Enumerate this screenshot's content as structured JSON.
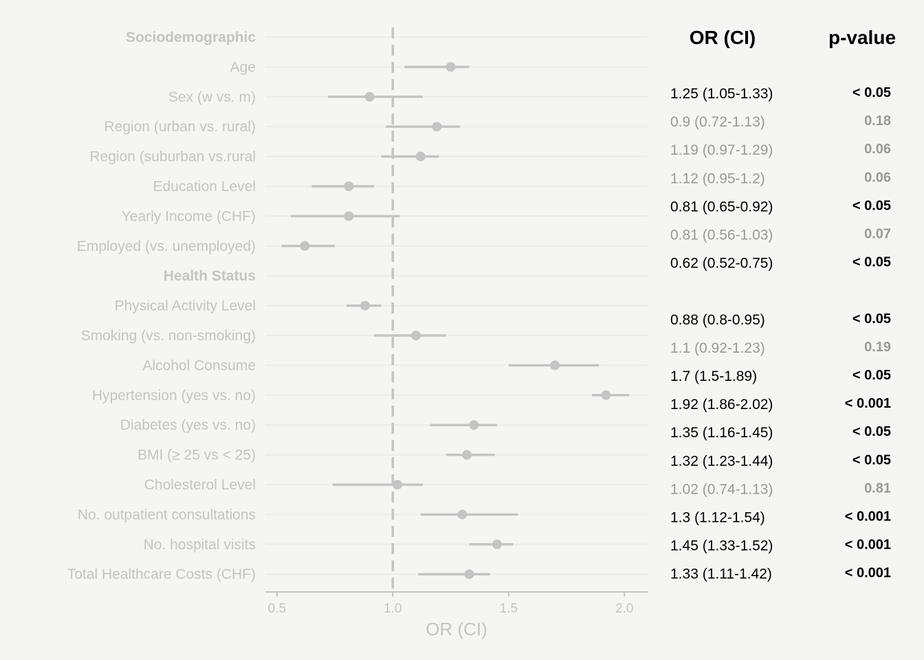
{
  "chart_data": {
    "type": "forest",
    "xlabel": "OR (CI)",
    "xlim": [
      0.45,
      2.1
    ],
    "x_ticks": [
      "0.5",
      "1.0",
      "1.5",
      "2.0"
    ],
    "reference_line": 1.0,
    "table_headers": {
      "or": "OR (CI)",
      "p": "p-value"
    },
    "colors": {
      "point": "#c4c4c4",
      "grid": "#ebebeb",
      "significant_text": "#000000",
      "nonsignificant_text": "#999999",
      "background": "#f5f5f3"
    },
    "rows": [
      {
        "label": "Sociodemographic",
        "header": true
      },
      {
        "label": "Age",
        "or": 1.25,
        "lo": 1.05,
        "hi": 1.33
      },
      {
        "label": "Sex (w vs. m)",
        "or": 0.9,
        "lo": 0.72,
        "hi": 1.13
      },
      {
        "label": "Region (urban vs. rural)",
        "or": 1.19,
        "lo": 0.97,
        "hi": 1.29
      },
      {
        "label": "Region (suburban vs.rural",
        "or": 1.12,
        "lo": 0.95,
        "hi": 1.2
      },
      {
        "label": "Education Level",
        "or": 0.81,
        "lo": 0.65,
        "hi": 0.92
      },
      {
        "label": "Yearly Income (CHF)",
        "or": 0.81,
        "lo": 0.56,
        "hi": 1.03
      },
      {
        "label": "Employed (vs. unemployed)",
        "or": 0.62,
        "lo": 0.52,
        "hi": 0.75
      },
      {
        "label": "Health Status",
        "header": true
      },
      {
        "label": "Physical Activity Level",
        "or": 0.88,
        "lo": 0.8,
        "hi": 0.95
      },
      {
        "label": "Smoking (vs. non-smoking)",
        "or": 1.1,
        "lo": 0.92,
        "hi": 1.23
      },
      {
        "label": "Alcohol Consume",
        "or": 1.7,
        "lo": 1.5,
        "hi": 1.89
      },
      {
        "label": "Hypertension (yes vs. no)",
        "or": 1.92,
        "lo": 1.86,
        "hi": 2.02
      },
      {
        "label": "Diabetes (yes vs. no)",
        "or": 1.35,
        "lo": 1.16,
        "hi": 1.45
      },
      {
        "label": "BMI (≥ 25 vs < 25)",
        "or": 1.32,
        "lo": 1.23,
        "hi": 1.44
      },
      {
        "label": "Cholesterol Level",
        "or": 1.02,
        "lo": 0.74,
        "hi": 1.13
      },
      {
        "label": "No. outpatient consultations",
        "or": 1.3,
        "lo": 1.12,
        "hi": 1.54
      },
      {
        "label": "No. hospital visits",
        "or": 1.45,
        "lo": 1.33,
        "hi": 1.52
      },
      {
        "label": "Total Healthcare Costs (CHF)",
        "or": 1.33,
        "lo": 1.11,
        "hi": 1.42
      }
    ],
    "table_rows": [
      {
        "or_ci": "1.25 (1.05-1.33)",
        "p": "< 0.05",
        "significant": true
      },
      {
        "or_ci": "0.9 (0.72-1.13)",
        "p": "0.18",
        "significant": false
      },
      {
        "or_ci": "1.19 (0.97-1.29)",
        "p": "0.06",
        "significant": false
      },
      {
        "or_ci": "1.12 (0.95-1.2)",
        "p": "0.06",
        "significant": false
      },
      {
        "or_ci": "0.81 (0.65-0.92)",
        "p": "< 0.05",
        "significant": true
      },
      {
        "or_ci": "0.81 (0.56-1.03)",
        "p": "0.07",
        "significant": false
      },
      {
        "or_ci": "0.62 (0.52-0.75)",
        "p": "< 0.05",
        "significant": true
      },
      {
        "or_ci": "0.88 (0.8-0.95)",
        "p": "< 0.05",
        "significant": true
      },
      {
        "or_ci": "1.1 (0.92-1.23)",
        "p": "0.19",
        "significant": false
      },
      {
        "or_ci": "1.7 (1.5-1.89)",
        "p": "< 0.05",
        "significant": true
      },
      {
        "or_ci": "1.92 (1.86-2.02)",
        "p": "< 0.001",
        "significant": true
      },
      {
        "or_ci": "1.35 (1.16-1.45)",
        "p": "< 0.05",
        "significant": true
      },
      {
        "or_ci": "1.32 (1.23-1.44)",
        "p": "< 0.05",
        "significant": true
      },
      {
        "or_ci": "1.02 (0.74-1.13)",
        "p": "0.81",
        "significant": false
      },
      {
        "or_ci": "1.3 (1.12-1.54)",
        "p": "< 0.001",
        "significant": true
      },
      {
        "or_ci": "1.45 (1.33-1.52)",
        "p": "< 0.001",
        "significant": true
      },
      {
        "or_ci": "1.33 (1.11-1.42)",
        "p": "< 0.001",
        "significant": true
      }
    ]
  }
}
